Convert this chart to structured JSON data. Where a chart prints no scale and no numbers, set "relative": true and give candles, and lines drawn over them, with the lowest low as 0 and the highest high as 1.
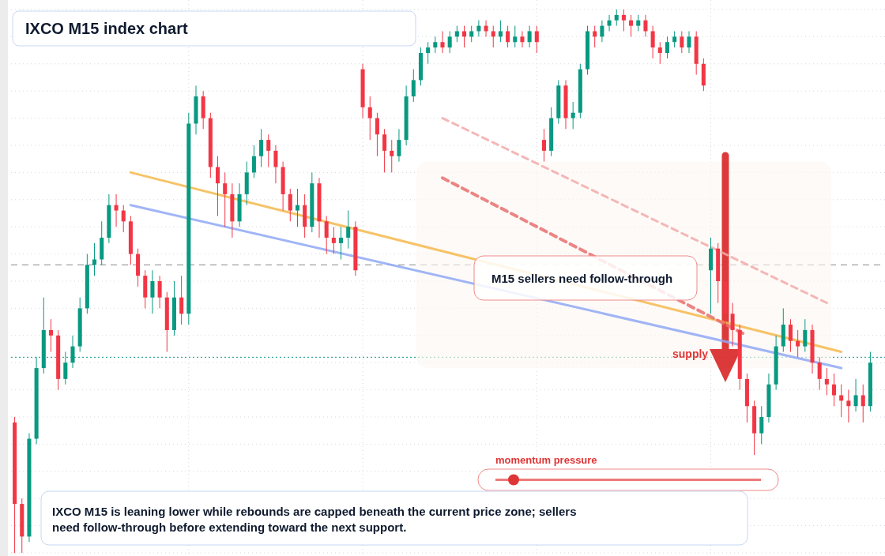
{
  "chart_data": {
    "type": "candlestick",
    "title": "IXCO M15 index chart",
    "relative": true,
    "grid": true,
    "categories": [
      null,
      null,
      null,
      null,
      null,
      null,
      null,
      null,
      null,
      null,
      null,
      null,
      null,
      null,
      null,
      null,
      null,
      null,
      null,
      null,
      null,
      null,
      null,
      null,
      null,
      null,
      null,
      null,
      null,
      null,
      null,
      null,
      null,
      null,
      null,
      null,
      null,
      null,
      null,
      null,
      null,
      null,
      null,
      null,
      null,
      null,
      null,
      null,
      null,
      null,
      null,
      null,
      null,
      null,
      null,
      null,
      null,
      null,
      null,
      null,
      null,
      null,
      null,
      null,
      null,
      null,
      null,
      null,
      null,
      null,
      null,
      null,
      null,
      null,
      null,
      null,
      null,
      null,
      null,
      null,
      null,
      null,
      null,
      null,
      null,
      null,
      null,
      null,
      null,
      null,
      null,
      null,
      null,
      null,
      null,
      null,
      null,
      null,
      null,
      null,
      null,
      null,
      null,
      null,
      null,
      null,
      null,
      null,
      null,
      null,
      null,
      null,
      null,
      null,
      null,
      null,
      null,
      null,
      null
    ],
    "ohlc": [
      [
        0.24,
        0.25,
        0,
        0.09
      ],
      [
        0.09,
        0.1,
        0,
        0.03
      ],
      [
        0.03,
        0.22,
        0.02,
        0.21
      ],
      [
        0.21,
        0.36,
        0.2,
        0.34
      ],
      [
        0.34,
        0.47,
        0.33,
        0.41
      ],
      [
        0.41,
        0.43,
        0.37,
        0.4
      ],
      [
        0.4,
        0.41,
        0.3,
        0.32
      ],
      [
        0.32,
        0.37,
        0.31,
        0.35
      ],
      [
        0.35,
        0.4,
        0.34,
        0.38
      ],
      [
        0.38,
        0.47,
        0.37,
        0.45
      ],
      [
        0.45,
        0.55,
        0.44,
        0.53
      ],
      [
        0.53,
        0.57,
        0.51,
        0.54
      ],
      [
        0.54,
        0.61,
        0.53,
        0.58
      ],
      [
        0.58,
        0.66,
        0.57,
        0.64
      ],
      [
        0.64,
        0.66,
        0.6,
        0.63
      ],
      [
        0.63,
        0.64,
        0.59,
        0.61
      ],
      [
        0.61,
        0.62,
        0.53,
        0.55
      ],
      [
        0.55,
        0.56,
        0.49,
        0.51
      ],
      [
        0.51,
        0.52,
        0.45,
        0.47
      ],
      [
        0.47,
        0.52,
        0.44,
        0.5
      ],
      [
        0.5,
        0.51,
        0.45,
        0.47
      ],
      [
        0.47,
        0.48,
        0.37,
        0.41
      ],
      [
        0.41,
        0.5,
        0.4,
        0.47
      ],
      [
        0.47,
        0.51,
        0.42,
        0.44
      ],
      [
        0.44,
        0.81,
        0.42,
        0.79
      ],
      [
        0.79,
        0.86,
        0.77,
        0.84
      ],
      [
        0.84,
        0.85,
        0.78,
        0.8
      ],
      [
        0.8,
        0.81,
        0.69,
        0.71
      ],
      [
        0.71,
        0.73,
        0.62,
        0.68
      ],
      [
        0.68,
        0.7,
        0.6,
        0.66
      ],
      [
        0.66,
        0.68,
        0.58,
        0.61
      ],
      [
        0.61,
        0.68,
        0.6,
        0.66
      ],
      [
        0.66,
        0.72,
        0.64,
        0.7
      ],
      [
        0.7,
        0.75,
        0.69,
        0.73
      ],
      [
        0.73,
        0.78,
        0.71,
        0.76
      ],
      [
        0.76,
        0.77,
        0.71,
        0.74
      ],
      [
        0.74,
        0.75,
        0.68,
        0.71
      ],
      [
        0.71,
        0.72,
        0.63,
        0.66
      ],
      [
        0.66,
        0.67,
        0.61,
        0.63
      ],
      [
        0.63,
        0.67,
        0.6,
        0.64
      ],
      [
        0.64,
        0.66,
        0.58,
        0.6
      ],
      [
        0.6,
        0.7,
        0.59,
        0.68
      ],
      [
        0.68,
        0.69,
        0.58,
        0.61
      ],
      [
        0.61,
        0.62,
        0.55,
        0.58
      ],
      [
        0.58,
        0.6,
        0.55,
        0.57
      ],
      [
        0.57,
        0.6,
        0.54,
        0.58
      ],
      [
        0.58,
        0.63,
        0.56,
        0.6
      ],
      [
        0.6,
        0.61,
        0.51,
        0.52
      ],
      [
        0.89,
        0.9,
        0.8,
        0.82
      ],
      [
        0.82,
        0.84,
        0.76,
        0.8
      ],
      [
        0.8,
        0.81,
        0.73,
        0.77
      ],
      [
        0.77,
        0.78,
        0.7,
        0.74
      ],
      [
        0.74,
        0.76,
        0.7,
        0.73
      ],
      [
        0.73,
        0.78,
        0.72,
        0.76
      ],
      [
        0.76,
        0.86,
        0.75,
        0.84
      ],
      [
        0.84,
        0.89,
        0.83,
        0.87
      ],
      [
        0.87,
        0.93,
        0.86,
        0.92
      ],
      [
        0.92,
        0.94,
        0.9,
        0.93
      ],
      [
        0.93,
        0.95,
        0.92,
        0.94
      ],
      [
        0.94,
        0.96,
        0.92,
        0.93
      ],
      [
        0.93,
        0.96,
        0.92,
        0.95
      ],
      [
        0.95,
        0.97,
        0.94,
        0.96
      ],
      [
        0.96,
        0.97,
        0.93,
        0.95
      ],
      [
        0.95,
        0.97,
        0.94,
        0.96
      ],
      [
        0.96,
        0.98,
        0.95,
        0.97
      ],
      [
        0.97,
        0.98,
        0.95,
        0.96
      ],
      [
        0.96,
        0.97,
        0.93,
        0.95
      ],
      [
        0.95,
        0.98,
        0.94,
        0.96
      ],
      [
        0.96,
        0.97,
        0.93,
        0.94
      ],
      [
        0.94,
        0.97,
        0.93,
        0.95
      ],
      [
        0.95,
        0.96,
        0.93,
        0.94
      ],
      [
        0.94,
        0.97,
        0.93,
        0.96
      ],
      [
        0.96,
        0.97,
        0.92,
        0.94
      ],
      [
        0.76,
        0.78,
        0.72,
        0.74
      ],
      [
        0.74,
        0.82,
        0.73,
        0.8
      ],
      [
        0.8,
        0.87,
        0.79,
        0.86
      ],
      [
        0.86,
        0.87,
        0.78,
        0.8
      ],
      [
        0.8,
        0.83,
        0.78,
        0.81
      ],
      [
        0.81,
        0.9,
        0.8,
        0.89
      ],
      [
        0.89,
        0.97,
        0.88,
        0.96
      ],
      [
        0.96,
        0.97,
        0.93,
        0.95
      ],
      [
        0.95,
        0.98,
        0.94,
        0.97
      ],
      [
        0.97,
        0.99,
        0.96,
        0.98
      ],
      [
        0.98,
        1,
        0.97,
        0.99
      ],
      [
        0.99,
        1,
        0.96,
        0.98
      ],
      [
        0.98,
        0.99,
        0.95,
        0.97
      ],
      [
        0.97,
        0.99,
        0.96,
        0.98
      ],
      [
        0.98,
        0.99,
        0.95,
        0.96
      ],
      [
        0.96,
        0.97,
        0.91,
        0.93
      ],
      [
        0.93,
        0.94,
        0.9,
        0.92
      ],
      [
        0.92,
        0.95,
        0.91,
        0.94
      ],
      [
        0.94,
        0.96,
        0.93,
        0.95
      ],
      [
        0.95,
        0.96,
        0.92,
        0.93
      ],
      [
        0.93,
        0.96,
        0.92,
        0.95
      ],
      [
        0.95,
        0.96,
        0.88,
        0.9
      ],
      [
        0.9,
        0.91,
        0.85,
        0.86
      ],
      [
        0.52,
        0.58,
        0.44,
        0.56
      ],
      [
        0.56,
        0.57,
        0.46,
        0.5
      ],
      [
        0.5,
        0.52,
        0.42,
        0.44
      ],
      [
        0.44,
        0.46,
        0.38,
        0.41
      ],
      [
        0.41,
        0.42,
        0.3,
        0.32
      ],
      [
        0.32,
        0.33,
        0.24,
        0.27
      ],
      [
        0.27,
        0.28,
        0.18,
        0.22
      ],
      [
        0.22,
        0.27,
        0.2,
        0.25
      ],
      [
        0.25,
        0.33,
        0.24,
        0.31
      ],
      [
        0.31,
        0.4,
        0.3,
        0.38
      ],
      [
        0.38,
        0.45,
        0.37,
        0.42
      ],
      [
        0.42,
        0.43,
        0.37,
        0.39
      ],
      [
        0.39,
        0.41,
        0.36,
        0.38
      ],
      [
        0.38,
        0.43,
        0.37,
        0.41
      ],
      [
        0.41,
        0.42,
        0.33,
        0.35
      ],
      [
        0.35,
        0.36,
        0.3,
        0.32
      ],
      [
        0.32,
        0.34,
        0.29,
        0.31
      ],
      [
        0.31,
        0.33,
        0.27,
        0.29
      ],
      [
        0.29,
        0.31,
        0.25,
        0.28
      ],
      [
        0.28,
        0.3,
        0.24,
        0.27
      ],
      [
        0.27,
        0.32,
        0.26,
        0.29
      ],
      [
        0.29,
        0.31,
        0.24,
        0.27
      ],
      [
        0.27,
        0.37,
        0.26,
        0.35
      ]
    ],
    "series": [
      {
        "type": "line",
        "color": "#f5b94e",
        "line_style": "solid",
        "values": [
          null,
          null,
          null,
          null,
          null,
          null,
          null,
          null,
          null,
          null,
          null,
          null,
          null,
          null,
          null,
          null,
          0.7,
          null,
          null,
          null,
          null,
          null,
          null,
          null,
          null,
          null,
          null,
          null,
          null,
          null,
          null,
          null,
          null,
          null,
          null,
          null,
          null,
          null,
          null,
          null,
          null,
          null,
          null,
          null,
          null,
          null,
          null,
          null,
          null,
          null,
          null,
          null,
          null,
          null,
          null,
          null,
          null,
          null,
          null,
          null,
          null,
          null,
          null,
          null,
          null,
          null,
          null,
          null,
          null,
          null,
          null,
          null,
          null,
          null,
          null,
          null,
          null,
          null,
          null,
          null,
          null,
          null,
          null,
          null,
          null,
          null,
          null,
          null,
          null,
          null,
          null,
          null,
          null,
          null,
          null,
          null,
          null,
          null,
          null,
          null,
          null,
          null,
          null,
          null,
          null,
          null,
          null,
          null,
          null,
          null,
          null,
          null,
          null,
          null,
          0.37,
          null,
          null,
          null,
          null
        ]
      },
      {
        "type": "line",
        "color": "#8fa8f5",
        "line_style": "solid",
        "values": [
          null,
          null,
          null,
          null,
          null,
          null,
          null,
          null,
          null,
          null,
          null,
          null,
          null,
          null,
          null,
          null,
          0.64,
          null,
          null,
          null,
          null,
          null,
          null,
          null,
          null,
          null,
          null,
          null,
          null,
          null,
          null,
          null,
          null,
          null,
          null,
          null,
          null,
          null,
          null,
          null,
          null,
          null,
          null,
          null,
          null,
          null,
          null,
          null,
          null,
          null,
          null,
          null,
          null,
          null,
          null,
          null,
          null,
          null,
          null,
          null,
          null,
          null,
          null,
          null,
          null,
          null,
          null,
          null,
          null,
          null,
          null,
          null,
          null,
          null,
          null,
          null,
          null,
          null,
          null,
          null,
          null,
          null,
          null,
          null,
          null,
          null,
          null,
          null,
          null,
          null,
          null,
          null,
          null,
          null,
          null,
          null,
          null,
          null,
          null,
          null,
          null,
          null,
          null,
          null,
          null,
          null,
          null,
          null,
          null,
          null,
          null,
          null,
          null,
          null,
          0.34,
          null,
          null,
          null,
          null
        ]
      },
      {
        "type": "line",
        "color": "#e8706f",
        "line_style": "dashed",
        "values": [
          null,
          null,
          null,
          null,
          null,
          null,
          null,
          null,
          null,
          null,
          null,
          null,
          null,
          null,
          null,
          null,
          null,
          null,
          null,
          null,
          null,
          null,
          null,
          null,
          null,
          null,
          null,
          null,
          null,
          null,
          null,
          null,
          null,
          null,
          null,
          null,
          null,
          null,
          null,
          null,
          null,
          null,
          null,
          null,
          null,
          null,
          null,
          null,
          null,
          null,
          null,
          null,
          null,
          null,
          null,
          null,
          null,
          null,
          null,
          0.69,
          null,
          null,
          null,
          null,
          null,
          null,
          null,
          null,
          null,
          null,
          null,
          null,
          null,
          null,
          null,
          null,
          null,
          null,
          null,
          null,
          null,
          null,
          null,
          null,
          null,
          null,
          null,
          null,
          null,
          null,
          null,
          null,
          null,
          null,
          null,
          null,
          null,
          null,
          null,
          null,
          null,
          0.4,
          null,
          null,
          null,
          null,
          null,
          null,
          null,
          null,
          null,
          null,
          null,
          null,
          null,
          null,
          null,
          null,
          null
        ]
      },
      {
        "type": "line",
        "color": "#f2aaaa",
        "line_style": "dashed",
        "values": [
          null,
          null,
          null,
          null,
          null,
          null,
          null,
          null,
          null,
          null,
          null,
          null,
          null,
          null,
          null,
          null,
          null,
          null,
          null,
          null,
          null,
          null,
          null,
          null,
          null,
          null,
          null,
          null,
          null,
          null,
          null,
          null,
          null,
          null,
          null,
          null,
          null,
          null,
          null,
          null,
          null,
          null,
          null,
          null,
          null,
          null,
          null,
          null,
          null,
          null,
          null,
          null,
          null,
          null,
          null,
          null,
          null,
          null,
          null,
          0.8,
          null,
          null,
          null,
          null,
          null,
          null,
          null,
          null,
          null,
          null,
          null,
          null,
          null,
          null,
          null,
          null,
          null,
          null,
          null,
          null,
          null,
          null,
          null,
          null,
          null,
          null,
          null,
          null,
          null,
          null,
          null,
          null,
          null,
          null,
          null,
          null,
          null,
          null,
          null,
          null,
          null,
          null,
          null,
          null,
          null,
          null,
          null,
          null,
          null,
          null,
          null,
          null,
          0.46,
          null,
          null,
          null,
          null,
          null,
          null
        ]
      }
    ],
    "ref_lines": [
      {
        "axis": "y",
        "value": 0.53,
        "color": "#888888",
        "line_style": "dashed"
      },
      {
        "axis": "y",
        "value": 0.36,
        "color": "#089981",
        "line_style": "dotted"
      }
    ],
    "annotations": [
      "M15 sellers need follow-through",
      "supply",
      "momentum pressure",
      "IXCO M15 is leaning lower while rebounds are capped beneath the current price zone; sellers need follow-through before extending toward the next support."
    ]
  }
}
